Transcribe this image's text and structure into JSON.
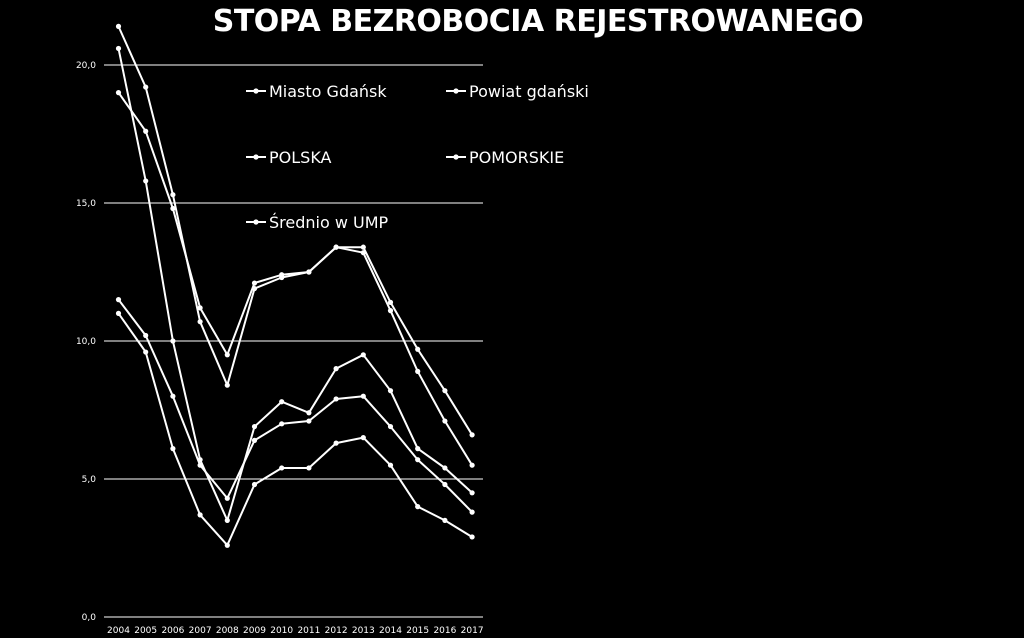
{
  "chart_data": {
    "type": "line",
    "title": "STOPA BEZROBOCIA REJESTROWANEGO",
    "xlabel": "",
    "ylabel": "",
    "x": [
      "2004",
      "2005",
      "2006",
      "2007",
      "2008",
      "2009",
      "2010",
      "2011",
      "2012",
      "2013",
      "2014",
      "2015",
      "2016",
      "2017"
    ],
    "ylim": [
      0,
      22
    ],
    "yticks": [
      0,
      5,
      10,
      15,
      20
    ],
    "ytick_labels": [
      "0,0",
      "5,0",
      "10,0",
      "15,0",
      "20,0"
    ],
    "grid": true,
    "colors": {
      "background": "#000000",
      "line": "#ffffff",
      "text": "#ffffff"
    },
    "legend": {
      "placement": "top-inside",
      "entries": [
        "Miasto Gdańsk",
        "Powiat gdański",
        "POLSKA",
        "POMORSKIE",
        "Średnio w UMP"
      ]
    },
    "series": [
      {
        "name": "Miasto Gdańsk",
        "values": [
          11.0,
          9.6,
          6.1,
          3.7,
          2.6,
          4.8,
          5.4,
          5.4,
          6.3,
          6.5,
          5.5,
          4.0,
          3.5,
          2.9
        ]
      },
      {
        "name": "Powiat gdański",
        "values": [
          20.6,
          15.8,
          10.0,
          5.7,
          3.5,
          6.9,
          7.8,
          7.4,
          9.0,
          9.5,
          8.2,
          6.1,
          5.4,
          4.5
        ]
      },
      {
        "name": "POLSKA",
        "values": [
          19.0,
          17.6,
          14.8,
          11.2,
          9.5,
          12.1,
          12.4,
          12.5,
          13.4,
          13.4,
          11.4,
          9.7,
          8.2,
          6.6
        ]
      },
      {
        "name": "POMORSKIE",
        "values": [
          21.4,
          19.2,
          15.3,
          10.7,
          8.4,
          11.9,
          12.3,
          12.5,
          13.4,
          13.2,
          11.1,
          8.9,
          7.1,
          5.5
        ]
      },
      {
        "name": "Średnio w UMP",
        "values": [
          11.5,
          10.2,
          8.0,
          5.5,
          4.3,
          6.4,
          7.0,
          7.1,
          7.9,
          8.0,
          6.9,
          5.7,
          4.8,
          3.8
        ]
      }
    ]
  }
}
